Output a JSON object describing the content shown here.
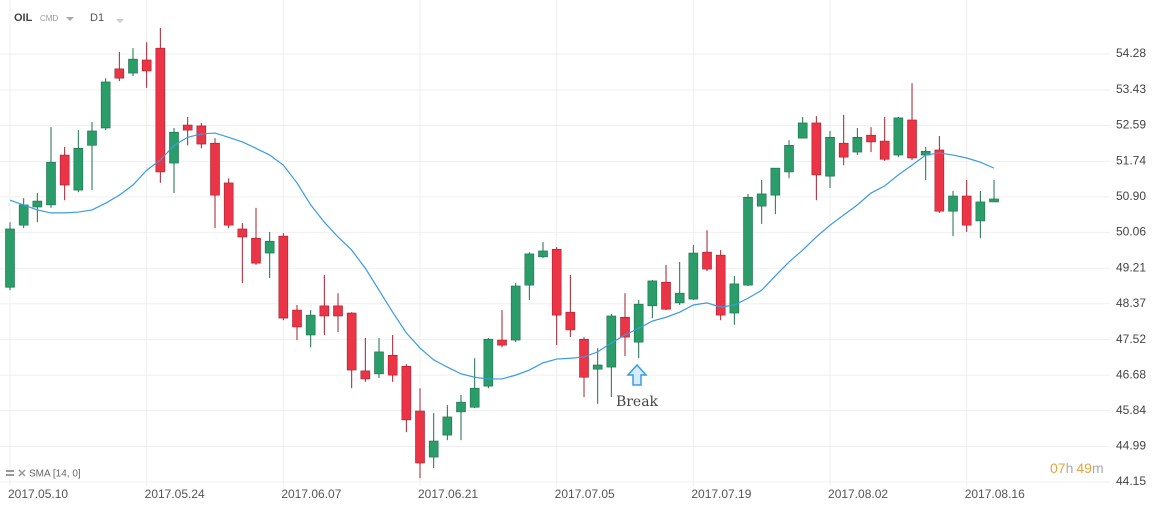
{
  "chart_data": {
    "type": "candlestick",
    "title": "OIL",
    "market": "CMD",
    "timeframe": "D1",
    "categories": [
      "2017.05.10",
      null,
      null,
      null,
      null,
      null,
      null,
      null,
      null,
      null,
      "2017.05.24",
      null,
      null,
      null,
      null,
      null,
      null,
      null,
      null,
      null,
      "2017.06.07",
      null,
      null,
      null,
      null,
      null,
      null,
      null,
      null,
      null,
      "2017.06.21",
      null,
      null,
      null,
      null,
      null,
      null,
      null,
      null,
      null,
      "2017.07.05",
      null,
      null,
      null,
      null,
      null,
      null,
      null,
      null,
      null,
      "2017.07.19",
      null,
      null,
      null,
      null,
      null,
      null,
      null,
      null,
      null,
      "2017.08.02",
      null,
      null,
      null,
      null,
      null,
      null,
      null,
      null,
      null,
      "2017.08.16",
      null,
      null
    ],
    "open": [
      48.76,
      50.23,
      50.66,
      50.71,
      51.89,
      51.06,
      52.12,
      52.53,
      53.93,
      53.83,
      54.14,
      54.42,
      51.7,
      52.6,
      52.58,
      52.17,
      51.23,
      50.14,
      49.92,
      49.57,
      49.97,
      48.22,
      47.63,
      48.32,
      48.32,
      48.15,
      46.78,
      46.71,
      47.15,
      46.89,
      45.83,
      44.74,
      45.26,
      45.81,
      45.92,
      46.42,
      47.51,
      47.51,
      48.81,
      49.48,
      49.66,
      48.17,
      47.53,
      46.82,
      46.87,
      48.05,
      47.46,
      48.32,
      48.88,
      48.39,
      48.48,
      49.59,
      49.52,
      48.15,
      48.81,
      50.68,
      50.94,
      51.49,
      52.29,
      52.65,
      51.39,
      52.17,
      51.96,
      52.36,
      52.22,
      51.89,
      52.72,
      51.89,
      52.01,
      50.56,
      50.92,
      50.33,
      50.78
    ],
    "high": [
      50.3,
      50.87,
      50.99,
      52.55,
      52.08,
      52.48,
      52.67,
      53.71,
      54.33,
      54.42,
      54.56,
      54.9,
      52.53,
      52.79,
      52.65,
      52.29,
      51.34,
      50.28,
      50.64,
      50.07,
      50.04,
      48.34,
      48.22,
      49.05,
      48.62,
      48.17,
      47.56,
      47.56,
      47.63,
      46.94,
      46.37,
      45.78,
      45.97,
      46.21,
      47.08,
      47.56,
      48.22,
      48.86,
      49.59,
      49.83,
      49.71,
      49.05,
      47.58,
      47.32,
      48.13,
      48.62,
      48.46,
      48.93,
      49.29,
      49.36,
      49.76,
      50.11,
      49.64,
      49.03,
      50.97,
      51.3,
      51.58,
      52.24,
      52.79,
      52.81,
      52.46,
      52.84,
      52.53,
      52.55,
      52.79,
      52.79,
      53.59,
      52.08,
      52.34,
      51.04,
      51.3,
      51.04,
      51.3
    ],
    "low": [
      48.69,
      50.16,
      50.3,
      50.64,
      50.82,
      51.01,
      51.06,
      52.48,
      53.64,
      53.76,
      53.48,
      51.23,
      50.99,
      52.12,
      52.05,
      50.16,
      50.16,
      48.86,
      49.29,
      48.98,
      47.98,
      47.51,
      47.34,
      47.63,
      47.7,
      46.37,
      46.52,
      46.61,
      46.52,
      45.33,
      44.24,
      44.48,
      45.14,
      45.14,
      45.9,
      46.37,
      47.34,
      47.46,
      48.46,
      49.45,
      47.39,
      47.58,
      46.16,
      46.0,
      46.16,
      47.13,
      47.08,
      48.03,
      48.22,
      48.34,
      48.46,
      49.14,
      47.98,
      47.87,
      48.79,
      50.26,
      50.49,
      51.34,
      52.29,
      50.82,
      51.11,
      51.65,
      51.89,
      51.96,
      51.75,
      51.84,
      51.77,
      51.3,
      50.52,
      49.97,
      50.07,
      49.92,
      50.78
    ],
    "close": [
      50.14,
      50.71,
      50.8,
      51.72,
      51.18,
      52.05,
      52.46,
      53.62,
      53.71,
      54.16,
      53.88,
      51.49,
      52.43,
      52.48,
      52.15,
      50.94,
      50.23,
      49.95,
      49.33,
      49.85,
      48.03,
      47.82,
      48.1,
      48.08,
      48.08,
      46.8,
      46.59,
      47.23,
      46.68,
      45.62,
      44.6,
      45.12,
      45.69,
      46.04,
      46.37,
      47.53,
      47.39,
      48.79,
      49.55,
      49.62,
      48.1,
      47.75,
      46.63,
      46.92,
      48.08,
      47.58,
      48.36,
      48.91,
      48.24,
      48.62,
      49.57,
      49.19,
      48.1,
      48.84,
      50.89,
      50.97,
      51.58,
      52.12,
      52.65,
      51.42,
      52.31,
      51.84,
      52.31,
      52.2,
      51.79,
      52.77,
      51.82,
      51.98,
      50.56,
      50.92,
      50.23,
      50.78,
      50.85
    ],
    "up_color": "#2a9d6a",
    "down_color": "#ec3447",
    "sma": {
      "name": "SMA [14, 0]",
      "color": "#3a9be6",
      "values": [
        50.82,
        50.71,
        50.59,
        50.52,
        50.52,
        50.54,
        50.59,
        50.75,
        50.94,
        51.18,
        51.53,
        51.77,
        52.12,
        52.31,
        52.39,
        52.41,
        52.31,
        52.2,
        52.05,
        51.89,
        51.65,
        51.23,
        50.71,
        50.3,
        49.95,
        49.64,
        49.21,
        48.69,
        48.17,
        47.68,
        47.32,
        47.04,
        46.87,
        46.71,
        46.63,
        46.59,
        46.59,
        46.68,
        46.8,
        46.97,
        47.06,
        47.08,
        47.11,
        47.23,
        47.44,
        47.63,
        47.79,
        47.96,
        48.05,
        48.17,
        48.34,
        48.39,
        48.29,
        48.34,
        48.5,
        48.69,
        49.03,
        49.36,
        49.64,
        49.95,
        50.23,
        50.47,
        50.71,
        50.99,
        51.16,
        51.42,
        51.65,
        51.89,
        51.94,
        51.89,
        51.82,
        51.72,
        51.58
      ]
    },
    "annotation": "Break",
    "countdown": [
      "07",
      "h",
      "49",
      "m"
    ],
    "ylim": [
      44.15,
      55.56
    ],
    "yticks": [
      44.15,
      44.99,
      45.84,
      46.68,
      47.52,
      48.37,
      49.21,
      50.06,
      {
        "value": 50.9,
        "label": "50.90"
      },
      51.74,
      52.59,
      53.43,
      54.28
    ],
    "grid": true
  }
}
